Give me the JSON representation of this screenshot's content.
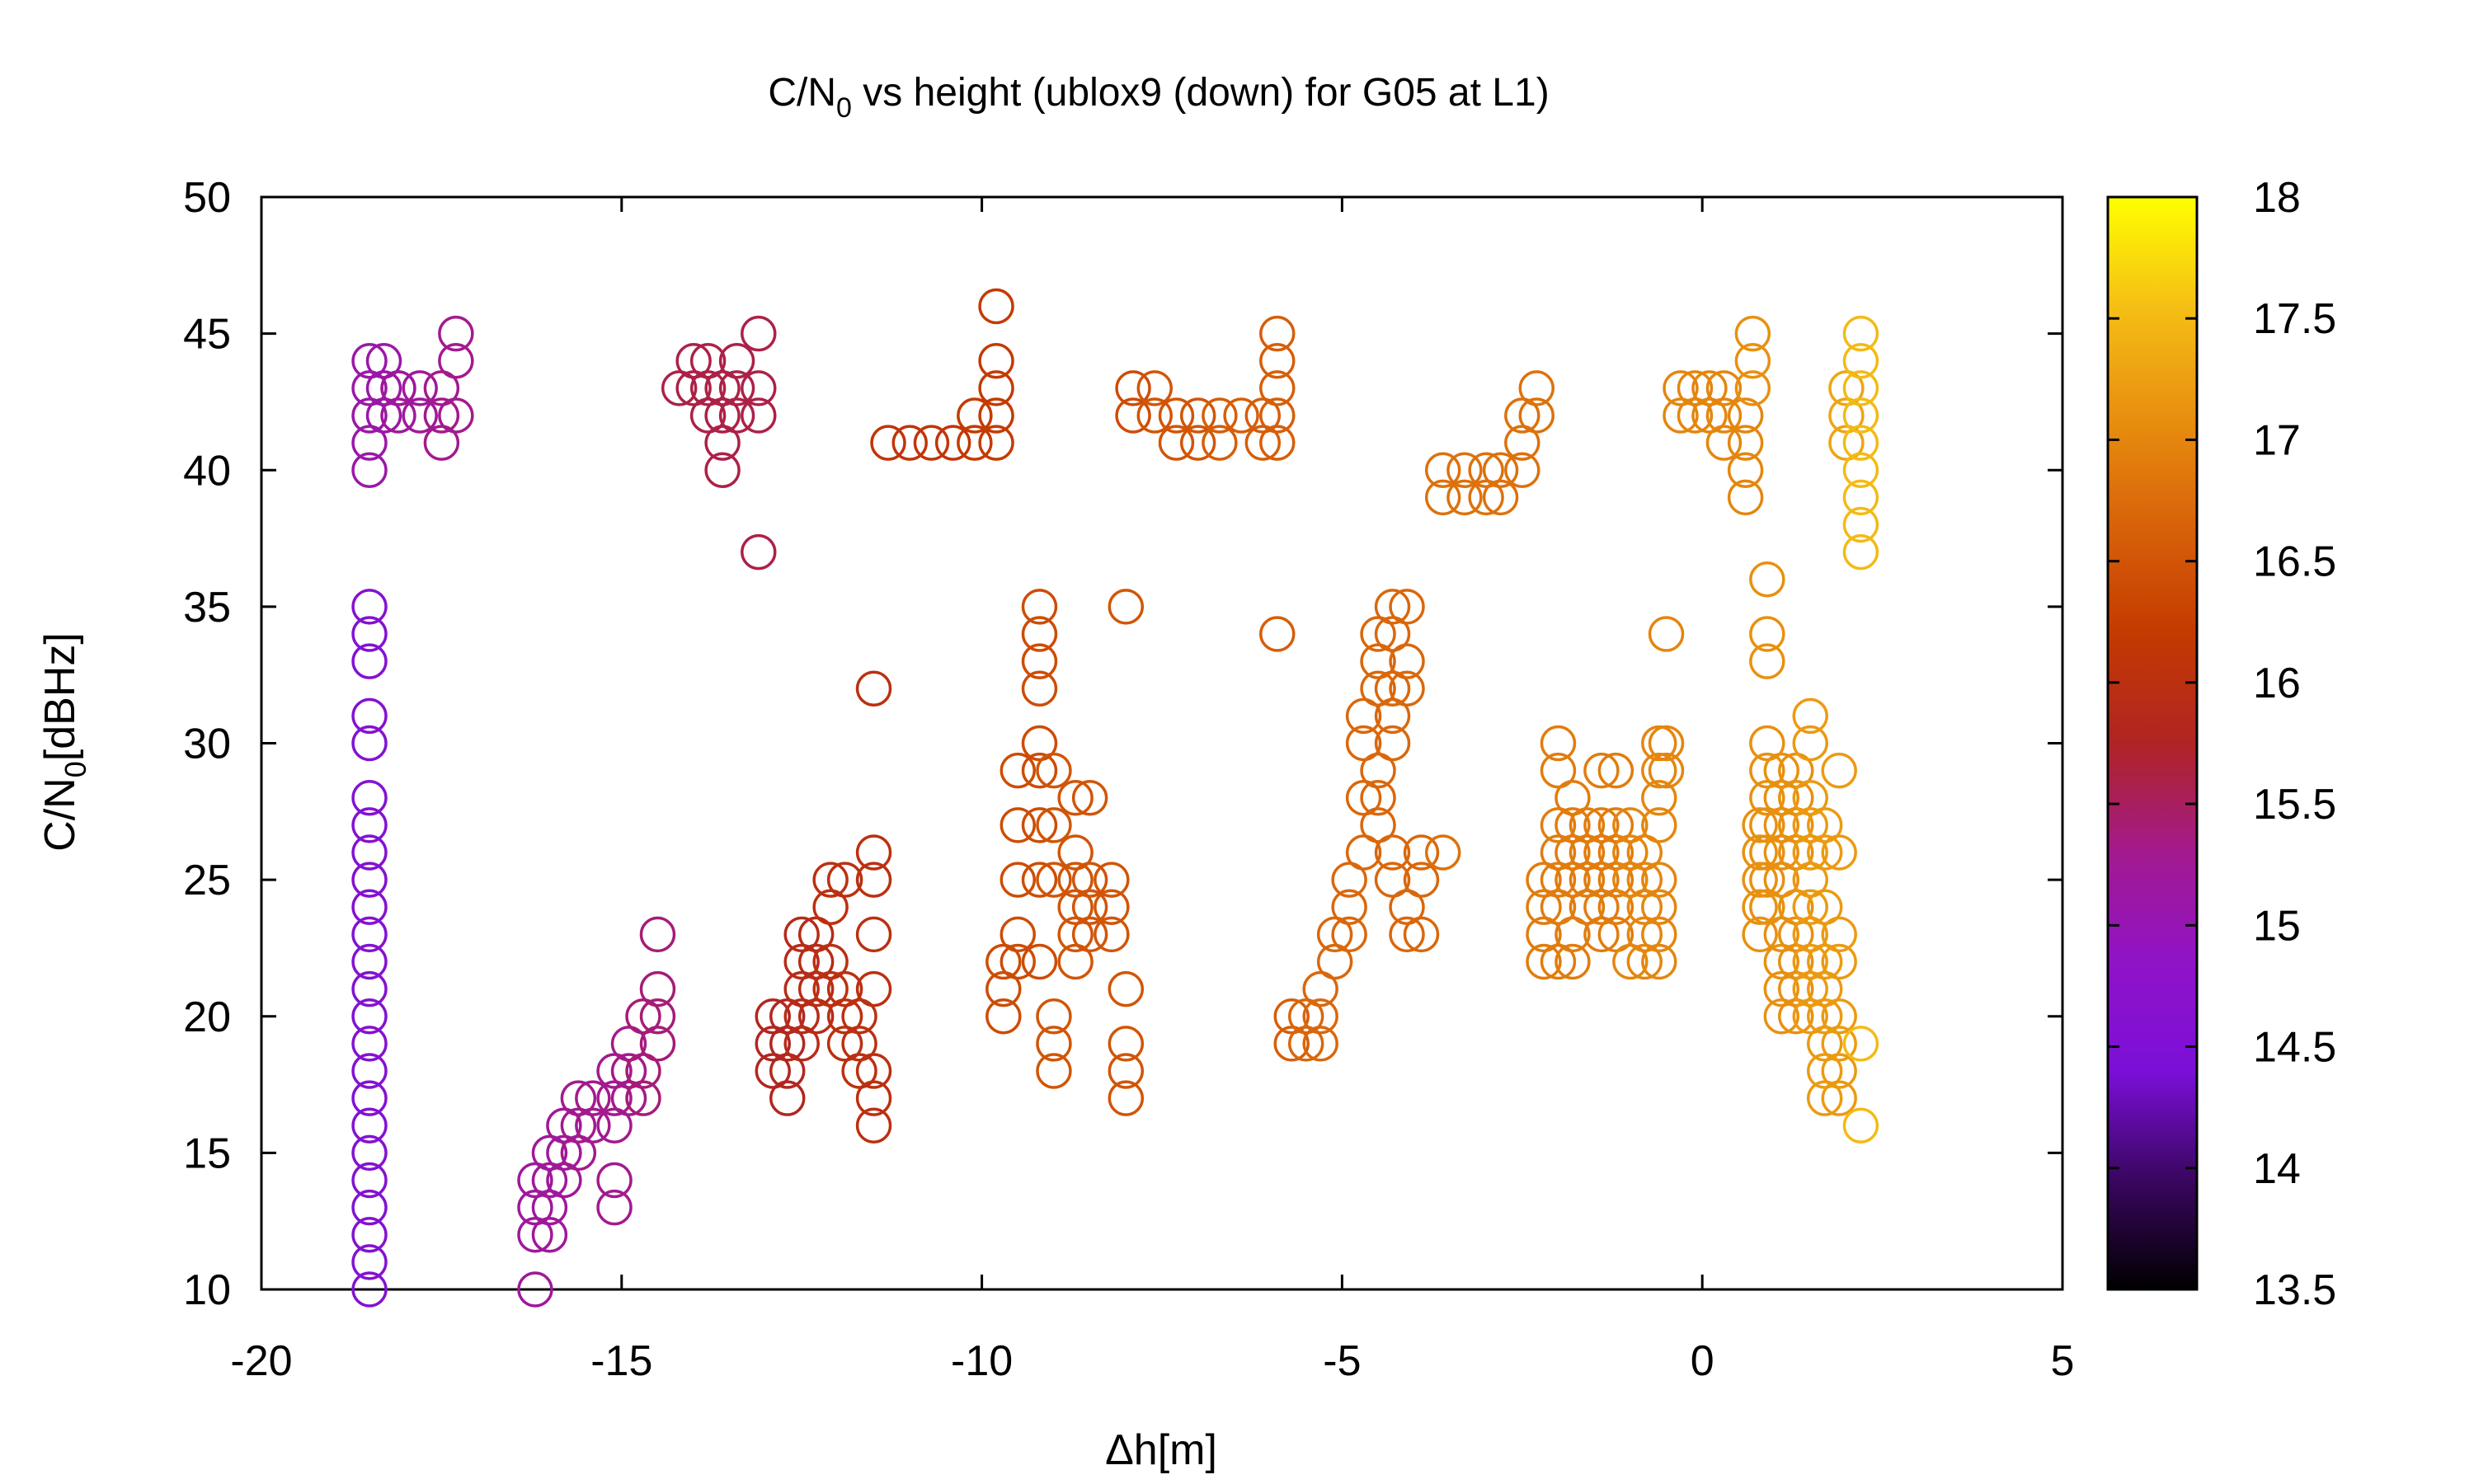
{
  "chart_data": {
    "type": "scatter",
    "title": {
      "main": "C/N",
      "sub": "0",
      "rest": " vs height (ublox9 (down) for G05 at L1)"
    },
    "xlabel": "Δh[m]",
    "ylabel": {
      "main": "C/N",
      "sub": "0",
      "rest": "[dBHz]"
    },
    "xlim": [
      -20,
      5
    ],
    "ylim": [
      10,
      50
    ],
    "xticks": [
      -20,
      -15,
      -10,
      -5,
      0,
      5
    ],
    "yticks": [
      10,
      15,
      20,
      25,
      30,
      35,
      40,
      45,
      50
    ],
    "marker": "open-circle",
    "grid": false,
    "legend": "none",
    "colorbar": {
      "range": [
        13.5,
        18
      ],
      "ticks": [
        13.5,
        14,
        14.5,
        15,
        15.5,
        16,
        16.5,
        17,
        17.5,
        18
      ],
      "palette": [
        "#000000",
        "#3a0660",
        "#7b0fd8",
        "#9013c8",
        "#a31a8e",
        "#b02424",
        "#c43a00",
        "#d8620a",
        "#e8900f",
        "#f5bf15",
        "#ffff00"
      ],
      "position": "right"
    },
    "clusters": [
      {
        "x": -18.5,
        "y": [
          10,
          11,
          12,
          13,
          14,
          15,
          16,
          17,
          18,
          19,
          20,
          21,
          22,
          23,
          24,
          25,
          26,
          27,
          28,
          30,
          31,
          33,
          34,
          35
        ],
        "z": 14.6
      },
      {
        "x": -18.5,
        "y": [
          40,
          41,
          42,
          43,
          44
        ],
        "z": 15.1
      },
      {
        "x": -18.3,
        "y": [
          43,
          44,
          42
        ],
        "z": 15.1
      },
      {
        "x": -18.1,
        "y": [
          43,
          42,
          43
        ],
        "z": 15.2
      },
      {
        "x": -17.8,
        "y": [
          43,
          42
        ],
        "z": 15.2
      },
      {
        "x": -17.5,
        "y": [
          42,
          41,
          43
        ],
        "z": 15.3
      },
      {
        "x": -17.3,
        "y": [
          45,
          44,
          42
        ],
        "z": 15.3
      },
      {
        "x": -16.2,
        "y": [
          10,
          12,
          13,
          14
        ],
        "z": 15.2
      },
      {
        "x": -16.0,
        "y": [
          12,
          13,
          14,
          15
        ],
        "z": 15.2
      },
      {
        "x": -15.8,
        "y": [
          14,
          15,
          16
        ],
        "z": 15.2
      },
      {
        "x": -15.6,
        "y": [
          15,
          16,
          17
        ],
        "z": 15.3
      },
      {
        "x": -15.4,
        "y": [
          16,
          17
        ],
        "z": 15.3
      },
      {
        "x": -15.1,
        "y": [
          13,
          14,
          16,
          17,
          18
        ],
        "z": 15.3
      },
      {
        "x": -14.9,
        "y": [
          17,
          18,
          19
        ],
        "z": 15.3
      },
      {
        "x": -14.7,
        "y": [
          17,
          18,
          20
        ],
        "z": 15.4
      },
      {
        "x": -14.5,
        "y": [
          19,
          20,
          21,
          23
        ],
        "z": 15.4
      },
      {
        "x": -14.2,
        "y": [
          43
        ],
        "z": 15.6
      },
      {
        "x": -14.0,
        "y": [
          43,
          44
        ],
        "z": 15.6
      },
      {
        "x": -13.8,
        "y": [
          43,
          44,
          42
        ],
        "z": 15.6
      },
      {
        "x": -13.6,
        "y": [
          42,
          43,
          41,
          40
        ],
        "z": 15.6
      },
      {
        "x": -13.4,
        "y": [
          42,
          43,
          44
        ],
        "z": 15.6
      },
      {
        "x": -13.1,
        "y": [
          45,
          43,
          42,
          37
        ],
        "z": 15.6
      },
      {
        "x": -12.9,
        "y": [
          20,
          19,
          18
        ],
        "z": 15.8
      },
      {
        "x": -12.7,
        "y": [
          20,
          19,
          18,
          17
        ],
        "z": 15.8
      },
      {
        "x": -12.5,
        "y": [
          19,
          20,
          21,
          22,
          23
        ],
        "z": 15.9
      },
      {
        "x": -12.3,
        "y": [
          21,
          22,
          23,
          20
        ],
        "z": 15.9
      },
      {
        "x": -12.1,
        "y": [
          24,
          25,
          21,
          22
        ],
        "z": 16.0
      },
      {
        "x": -11.9,
        "y": [
          25,
          20,
          19,
          21
        ],
        "z": 16.0
      },
      {
        "x": -11.7,
        "y": [
          19,
          18,
          20
        ],
        "z": 16.0
      },
      {
        "x": -11.5,
        "y": [
          32,
          26,
          25,
          23,
          21,
          18,
          17,
          16
        ],
        "z": 16.0
      },
      {
        "x": -11.3,
        "y": [
          41
        ],
        "z": 16.1
      },
      {
        "x": -11.0,
        "y": [
          41
        ],
        "z": 16.1
      },
      {
        "x": -10.7,
        "y": [
          41
        ],
        "z": 16.1
      },
      {
        "x": -10.4,
        "y": [
          41
        ],
        "z": 16.1
      },
      {
        "x": -10.1,
        "y": [
          41,
          42
        ],
        "z": 16.2
      },
      {
        "x": -9.8,
        "y": [
          46,
          44,
          43,
          42,
          41
        ],
        "z": 16.2
      },
      {
        "x": -9.7,
        "y": [
          22,
          21,
          20
        ],
        "z": 16.4
      },
      {
        "x": -9.5,
        "y": [
          27,
          25,
          23,
          22,
          29
        ],
        "z": 16.4
      },
      {
        "x": -9.2,
        "y": [
          35,
          34,
          33,
          32,
          30,
          29,
          27,
          25,
          22
        ],
        "z": 16.4
      },
      {
        "x": -9.0,
        "y": [
          29,
          27,
          25,
          20,
          19,
          18
        ],
        "z": 16.5
      },
      {
        "x": -8.7,
        "y": [
          28,
          26,
          25,
          24,
          23,
          22
        ],
        "z": 16.5
      },
      {
        "x": -8.5,
        "y": [
          28,
          25,
          24,
          23
        ],
        "z": 16.5
      },
      {
        "x": -8.2,
        "y": [
          25,
          24,
          23
        ],
        "z": 16.5
      },
      {
        "x": -8.0,
        "y": [
          35,
          21,
          19,
          18,
          17
        ],
        "z": 16.5
      },
      {
        "x": -7.9,
        "y": [
          43,
          42
        ],
        "z": 16.4
      },
      {
        "x": -7.6,
        "y": [
          42,
          43
        ],
        "z": 16.5
      },
      {
        "x": -7.3,
        "y": [
          42,
          41
        ],
        "z": 16.5
      },
      {
        "x": -7.0,
        "y": [
          42,
          41
        ],
        "z": 16.5
      },
      {
        "x": -6.7,
        "y": [
          42,
          41
        ],
        "z": 16.6
      },
      {
        "x": -6.4,
        "y": [
          42
        ],
        "z": 16.6
      },
      {
        "x": -6.1,
        "y": [
          42,
          41
        ],
        "z": 16.6
      },
      {
        "x": -5.9,
        "y": [
          45,
          44,
          43,
          42,
          41,
          34
        ],
        "z": 16.6
      },
      {
        "x": -5.7,
        "y": [
          20,
          19
        ],
        "z": 16.6
      },
      {
        "x": -5.5,
        "y": [
          19,
          20
        ],
        "z": 16.7
      },
      {
        "x": -5.3,
        "y": [
          20,
          21,
          19
        ],
        "z": 16.7
      },
      {
        "x": -5.1,
        "y": [
          22,
          23
        ],
        "z": 16.7
      },
      {
        "x": -4.9,
        "y": [
          23,
          24,
          25
        ],
        "z": 16.7
      },
      {
        "x": -4.7,
        "y": [
          26,
          28,
          30,
          31
        ],
        "z": 16.7
      },
      {
        "x": -4.5,
        "y": [
          32,
          33,
          34,
          28,
          29,
          27
        ],
        "z": 16.7
      },
      {
        "x": -4.3,
        "y": [
          30,
          31,
          32,
          35,
          34,
          26,
          25
        ],
        "z": 16.7
      },
      {
        "x": -4.1,
        "y": [
          35,
          33,
          32,
          24,
          23
        ],
        "z": 16.7
      },
      {
        "x": -3.9,
        "y": [
          26,
          25,
          23
        ],
        "z": 16.7
      },
      {
        "x": -3.6,
        "y": [
          26,
          40,
          39
        ],
        "z": 16.8
      },
      {
        "x": -3.3,
        "y": [
          40,
          39
        ],
        "z": 16.8
      },
      {
        "x": -3.0,
        "y": [
          40,
          39
        ],
        "z": 16.8
      },
      {
        "x": -2.8,
        "y": [
          39,
          40
        ],
        "z": 16.8
      },
      {
        "x": -2.5,
        "y": [
          40,
          41,
          42
        ],
        "z": 16.8
      },
      {
        "x": -2.3,
        "y": [
          43,
          42
        ],
        "z": 16.8
      },
      {
        "x": -2.2,
        "y": [
          25,
          24,
          23,
          22
        ],
        "z": 16.9
      },
      {
        "x": -2.0,
        "y": [
          30,
          29,
          27,
          26,
          25,
          24,
          22
        ],
        "z": 16.9
      },
      {
        "x": -1.8,
        "y": [
          28,
          27,
          26,
          25,
          23,
          22
        ],
        "z": 16.9
      },
      {
        "x": -1.6,
        "y": [
          27,
          26,
          25,
          24
        ],
        "z": 16.9
      },
      {
        "x": -1.4,
        "y": [
          29,
          27,
          26,
          25,
          24,
          23
        ],
        "z": 16.9
      },
      {
        "x": -1.2,
        "y": [
          29,
          27,
          26,
          25,
          24,
          23
        ],
        "z": 16.9
      },
      {
        "x": -1.0,
        "y": [
          27,
          26,
          25,
          22
        ],
        "z": 17.0
      },
      {
        "x": -0.8,
        "y": [
          26,
          25,
          24,
          23,
          22
        ],
        "z": 17.0
      },
      {
        "x": -0.6,
        "y": [
          30,
          29,
          28,
          27,
          25,
          24,
          23,
          22
        ],
        "z": 17.0
      },
      {
        "x": -0.5,
        "y": [
          34,
          30,
          29
        ],
        "z": 17.0
      },
      {
        "x": -0.3,
        "y": [
          43,
          42
        ],
        "z": 17.0
      },
      {
        "x": -0.1,
        "y": [
          42,
          43
        ],
        "z": 17.0
      },
      {
        "x": 0.1,
        "y": [
          43,
          42
        ],
        "z": 17.0
      },
      {
        "x": 0.3,
        "y": [
          43,
          42,
          41
        ],
        "z": 17.0
      },
      {
        "x": 0.6,
        "y": [
          42,
          41,
          40,
          39
        ],
        "z": 17.0
      },
      {
        "x": 0.7,
        "y": [
          45,
          44,
          43
        ],
        "z": 17.1
      },
      {
        "x": 0.8,
        "y": [
          27,
          25,
          24,
          23,
          26
        ],
        "z": 17.1
      },
      {
        "x": 0.9,
        "y": [
          36,
          34,
          33,
          30,
          29,
          28,
          27,
          26,
          25,
          24
        ],
        "z": 17.1
      },
      {
        "x": 1.1,
        "y": [
          29,
          28,
          27,
          26,
          25,
          23,
          22,
          21,
          20
        ],
        "z": 17.1
      },
      {
        "x": 1.3,
        "y": [
          29,
          28,
          27,
          26,
          24,
          23,
          22,
          21,
          20
        ],
        "z": 17.1
      },
      {
        "x": 1.5,
        "y": [
          31,
          30,
          28,
          27,
          26,
          25,
          24,
          23,
          22,
          21,
          20
        ],
        "z": 17.2
      },
      {
        "x": 1.7,
        "y": [
          27,
          26,
          24,
          22,
          21,
          20,
          19,
          18,
          17
        ],
        "z": 17.2
      },
      {
        "x": 1.9,
        "y": [
          29,
          26,
          23,
          22,
          20,
          19,
          18,
          17
        ],
        "z": 17.2
      },
      {
        "x": 2.0,
        "y": [
          43,
          42,
          41
        ],
        "z": 17.3
      },
      {
        "x": 2.2,
        "y": [
          45,
          44,
          43,
          42,
          41,
          40,
          39,
          38,
          37,
          19,
          16
        ],
        "z": 17.5
      }
    ]
  }
}
